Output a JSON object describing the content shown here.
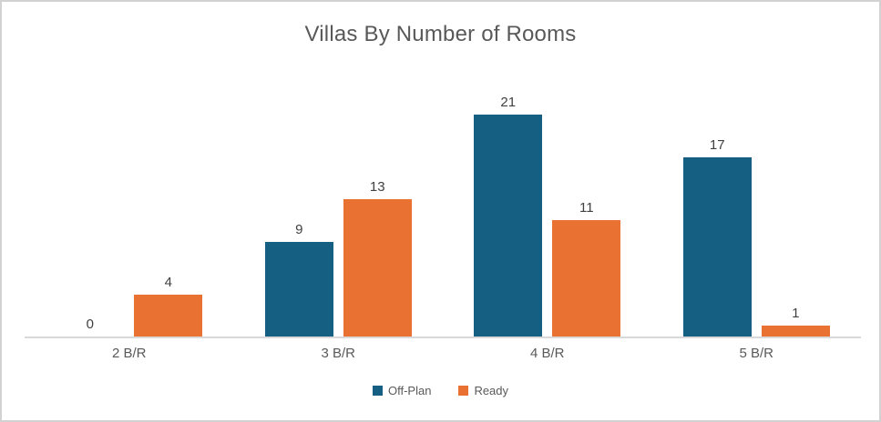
{
  "title": "Villas By Number of Rooms",
  "colors": {
    "off_plan": "#156082",
    "ready": "#E97132",
    "title_text": "#595959",
    "data_label_text": "#404040",
    "category_label_text": "#595959",
    "axis_line": "#D9D9D9",
    "frame_border": "#D2D2D2",
    "background": "#FFFFFF"
  },
  "legend": {
    "position": "bottom",
    "items": [
      {
        "label": "Off-Plan",
        "color": "#156082"
      },
      {
        "label": "Ready",
        "color": "#E97132"
      }
    ]
  },
  "chart_data": {
    "type": "bar",
    "title": "Villas By Number of Rooms",
    "categories": [
      "2 B/R",
      "3 B/R",
      "4 B/R",
      "5 B/R"
    ],
    "series": [
      {
        "name": "Off-Plan",
        "color": "#156082",
        "values": [
          0,
          9,
          21,
          17
        ]
      },
      {
        "name": "Ready",
        "color": "#E97132",
        "values": [
          4,
          13,
          11,
          1
        ]
      }
    ],
    "xlabel": "",
    "ylabel": "",
    "ylim": [
      0,
      25
    ],
    "grid": false,
    "y_axis_visible": false,
    "legend_position": "bottom",
    "data_labels": true
  }
}
